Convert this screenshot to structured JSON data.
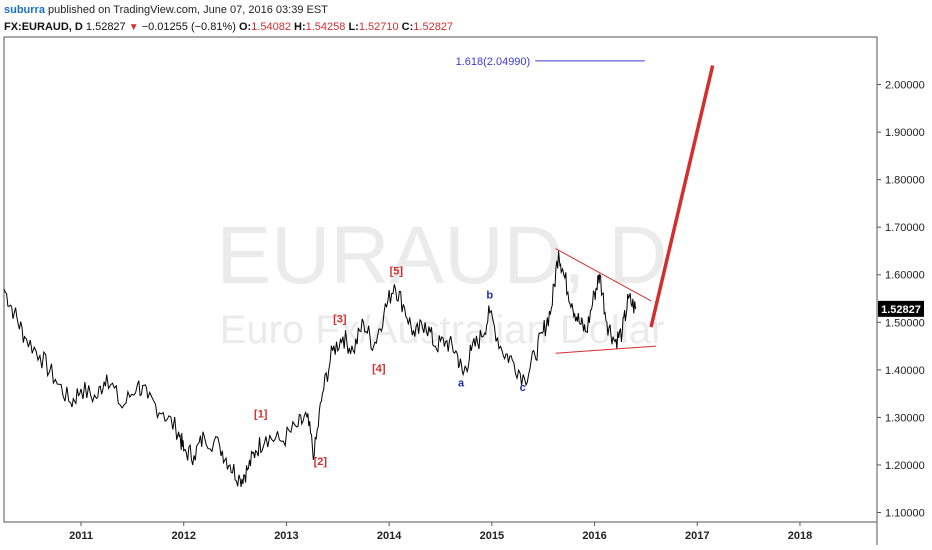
{
  "header": {
    "author": "suburra",
    "published_text": " published on TradingView.com, June 07, 2016 03:39 EST",
    "symbol": "FX:EURAUD, D",
    "last": "1.52827",
    "change": "−0.01255 (−0.81%)",
    "o_label": "O:",
    "o": "1.54082",
    "h_label": "H:",
    "h": "1.54258",
    "l_label": "L:",
    "l": "1.52710",
    "c_label": "C:",
    "c": "1.52827"
  },
  "watermark": {
    "line1": "EURAUD, D",
    "line2": "Euro Fx/Australian Dollar"
  },
  "colors": {
    "price_line": "#000000",
    "annotation_red": "#d32f2f",
    "wave_blue": "#1f2fb0",
    "fib": "#3b3bd1",
    "watermark": "#ebebeb"
  },
  "chart_data": {
    "type": "line",
    "ylim": [
      1.08,
      2.1
    ],
    "xlim": [
      2010.25,
      2018.75
    ],
    "yticks": [
      "2.00000",
      "1.90000",
      "1.80000",
      "1.70000",
      "1.60000",
      "1.50000",
      "1.40000",
      "1.30000",
      "1.20000",
      "1.10000"
    ],
    "ytick_values": [
      2.0,
      1.9,
      1.8,
      1.7,
      1.6,
      1.5,
      1.4,
      1.3,
      1.2,
      1.1
    ],
    "xticks": [
      "2011",
      "2012",
      "2013",
      "2014",
      "2015",
      "2016",
      "2017",
      "2018"
    ],
    "xtick_values": [
      2011,
      2012,
      2013,
      2014,
      2015,
      2016,
      2017,
      2018
    ],
    "last_price_label": "1.52827",
    "last_price": 1.52827,
    "series": [
      {
        "x": [
          2010.25,
          2010.35,
          2010.45,
          2010.6,
          2010.75,
          2010.9,
          2011.0,
          2011.15,
          2011.25,
          2011.4,
          2011.55,
          2011.65,
          2011.8,
          2011.95,
          2012.0,
          2012.1,
          2012.2,
          2012.35,
          2012.45,
          2012.55,
          2012.62,
          2012.7,
          2012.8,
          2012.95,
          2013.1,
          2013.2,
          2013.27,
          2013.35,
          2013.45,
          2013.55,
          2013.65,
          2013.75,
          2013.85,
          2013.95,
          2014.05,
          2014.15,
          2014.25,
          2014.35,
          2014.45,
          2014.55,
          2014.65,
          2014.72,
          2014.8,
          2014.9,
          2014.98,
          2015.1,
          2015.2,
          2015.32,
          2015.42,
          2015.5,
          2015.58,
          2015.65,
          2015.7,
          2015.78,
          2015.85,
          2015.92,
          2016.0,
          2016.05,
          2016.12,
          2016.2,
          2016.27,
          2016.33,
          2016.4
        ],
        "y": [
          1.57,
          1.52,
          1.47,
          1.43,
          1.38,
          1.33,
          1.36,
          1.34,
          1.39,
          1.32,
          1.37,
          1.34,
          1.31,
          1.27,
          1.23,
          1.22,
          1.26,
          1.24,
          1.2,
          1.17,
          1.19,
          1.23,
          1.26,
          1.25,
          1.28,
          1.3,
          1.22,
          1.35,
          1.44,
          1.47,
          1.44,
          1.5,
          1.45,
          1.52,
          1.58,
          1.53,
          1.47,
          1.5,
          1.45,
          1.46,
          1.44,
          1.39,
          1.44,
          1.47,
          1.52,
          1.44,
          1.42,
          1.38,
          1.43,
          1.48,
          1.53,
          1.65,
          1.6,
          1.54,
          1.5,
          1.48,
          1.56,
          1.6,
          1.5,
          1.46,
          1.48,
          1.55,
          1.528
        ]
      }
    ],
    "wave_labels": [
      {
        "text": "[1]",
        "x": 2012.75,
        "y": 1.3,
        "color": "red"
      },
      {
        "text": "[2]",
        "x": 2013.33,
        "y": 1.2,
        "color": "red"
      },
      {
        "text": "[3]",
        "x": 2013.52,
        "y": 1.5,
        "color": "red"
      },
      {
        "text": "[4]",
        "x": 2013.9,
        "y": 1.395,
        "color": "red"
      },
      {
        "text": "[5]",
        "x": 2014.07,
        "y": 1.6,
        "color": "red"
      },
      {
        "text": "a",
        "x": 2014.7,
        "y": 1.365,
        "color": "blue"
      },
      {
        "text": "b",
        "x": 2014.98,
        "y": 1.55,
        "color": "blue"
      },
      {
        "text": "c",
        "x": 2015.3,
        "y": 1.355,
        "color": "blue"
      }
    ],
    "fib_level": {
      "label": "1.618(2.04990)",
      "value": 2.0499,
      "x_start": 2014.4,
      "x_end": 2016.1
    },
    "triangle": {
      "upper": [
        [
          2015.62,
          1.655
        ],
        [
          2016.55,
          1.545
        ]
      ],
      "lower": [
        [
          2015.62,
          1.435
        ],
        [
          2016.6,
          1.45
        ]
      ]
    },
    "projection": [
      [
        2016.55,
        1.49
      ],
      [
        2017.15,
        2.04
      ]
    ]
  }
}
